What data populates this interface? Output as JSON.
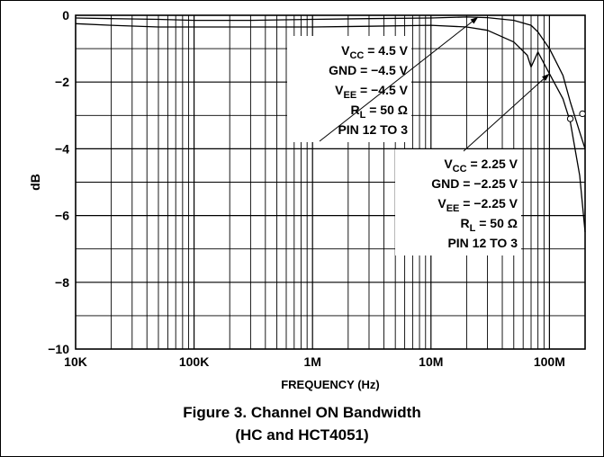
{
  "figure": {
    "caption_line1": "Figure 3. Channel ON Bandwidth",
    "caption_line2": "(HC and HCT4051)"
  },
  "chart_data": {
    "type": "line",
    "xscale": "log",
    "xlim": [
      10000,
      200000000
    ],
    "ylim": [
      -10,
      0
    ],
    "xlabel": "FREQUENCY (Hz)",
    "ylabel": "dB",
    "grid": true,
    "x_ticks": [
      {
        "value": 10000,
        "label": "10K"
      },
      {
        "value": 100000,
        "label": "100K"
      },
      {
        "value": 1000000,
        "label": "1M"
      },
      {
        "value": 10000000,
        "label": "10M"
      },
      {
        "value": 100000000,
        "label": "100M"
      }
    ],
    "y_ticks": [
      {
        "value": 0,
        "label": "0"
      },
      {
        "value": -2,
        "label": "−2"
      },
      {
        "value": -4,
        "label": "−4"
      },
      {
        "value": -6,
        "label": "−6"
      },
      {
        "value": -8,
        "label": "−8"
      },
      {
        "value": -10,
        "label": "−10"
      }
    ],
    "series": [
      {
        "key": "vcc_4_5",
        "points": [
          [
            10000,
            -0.08
          ],
          [
            20000,
            -0.1
          ],
          [
            50000,
            -0.12
          ],
          [
            100000,
            -0.15
          ],
          [
            300000,
            -0.15
          ],
          [
            1000000,
            -0.12
          ],
          [
            3000000,
            -0.1
          ],
          [
            10000000,
            -0.08
          ],
          [
            20000000,
            -0.05
          ],
          [
            30000000,
            -0.07
          ],
          [
            50000000,
            -0.15
          ],
          [
            70000000,
            -0.3
          ],
          [
            80000000,
            -0.5
          ],
          [
            100000000,
            -1.0
          ],
          [
            130000000,
            -1.8
          ],
          [
            150000000,
            -2.6
          ],
          [
            180000000,
            -3.5
          ],
          [
            200000000,
            -4.0
          ]
        ],
        "markers": [
          [
            190000000,
            -2.95
          ]
        ]
      },
      {
        "key": "vcc_2_25",
        "points": [
          [
            10000,
            -0.25
          ],
          [
            20000,
            -0.3
          ],
          [
            50000,
            -0.35
          ],
          [
            100000,
            -0.35
          ],
          [
            300000,
            -0.35
          ],
          [
            1000000,
            -0.35
          ],
          [
            3000000,
            -0.33
          ],
          [
            10000000,
            -0.3
          ],
          [
            20000000,
            -0.35
          ],
          [
            30000000,
            -0.45
          ],
          [
            50000000,
            -0.8
          ],
          [
            65000000,
            -1.2
          ],
          [
            70000000,
            -1.55
          ],
          [
            80000000,
            -1.1
          ],
          [
            100000000,
            -1.75
          ],
          [
            130000000,
            -2.5
          ],
          [
            150000000,
            -3.2
          ],
          [
            180000000,
            -4.8
          ],
          [
            200000000,
            -6.5
          ]
        ],
        "markers": [
          [
            150000000,
            -3.1
          ]
        ]
      }
    ],
    "annotations": [
      {
        "key": "ann1",
        "lines": [
          {
            "text": "V",
            "sub": "CC",
            "rest": " = 4.5 V"
          },
          {
            "text": "GND = −4.5 V",
            "sub": "",
            "rest": ""
          },
          {
            "text": "V",
            "sub": "EE",
            "rest": " = −4.5 V"
          },
          {
            "text": "R",
            "sub": "L",
            "rest": " = 50 Ω"
          },
          {
            "text": "PIN 12 TO 3",
            "sub": "",
            "rest": ""
          }
        ],
        "arrow_target": [
          25000000,
          -0.05
        ]
      },
      {
        "key": "ann2",
        "lines": [
          {
            "text": "V",
            "sub": "CC",
            "rest": " = 2.25 V"
          },
          {
            "text": "GND = −2.25 V",
            "sub": "",
            "rest": ""
          },
          {
            "text": "V",
            "sub": "EE",
            "rest": " = −2.25 V"
          },
          {
            "text": "R",
            "sub": "L",
            "rest": " = 50 Ω"
          },
          {
            "text": "PIN 12 TO 3",
            "sub": "",
            "rest": ""
          }
        ],
        "arrow_target": [
          100000000,
          -1.75
        ]
      }
    ]
  }
}
